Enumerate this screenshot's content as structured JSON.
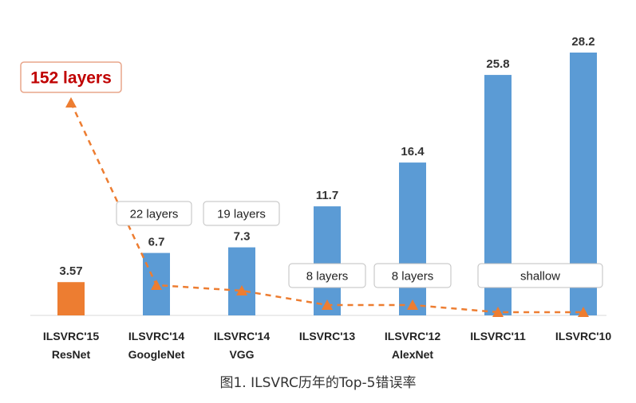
{
  "chart_data": {
    "type": "bar",
    "categories": [
      [
        "ILSVRC'15",
        "ResNet"
      ],
      [
        "ILSVRC'14",
        "GoogleNet"
      ],
      [
        "ILSVRC'14",
        "VGG"
      ],
      [
        "ILSVRC'13",
        ""
      ],
      [
        "ILSVRC'12",
        "AlexNet"
      ],
      [
        "ILSVRC'11",
        ""
      ],
      [
        "ILSVRC'10",
        ""
      ]
    ],
    "values": [
      3.57,
      6.7,
      7.3,
      11.7,
      16.4,
      25.8,
      28.2
    ],
    "value_labels": [
      "3.57",
      "6.7",
      "7.3",
      "11.7",
      "16.4",
      "25.8",
      "28.2"
    ],
    "bar_colors": [
      "#ED7D31",
      "#5B9BD5",
      "#5B9BD5",
      "#5B9BD5",
      "#5B9BD5",
      "#5B9BD5",
      "#5B9BD5"
    ],
    "ylim": [
      0,
      28.2
    ],
    "grid": false,
    "layer_series": {
      "points": [
        152,
        22,
        19,
        8,
        8,
        0,
        0
      ],
      "color": "#ED7D31",
      "style": "dashed-with-triangles"
    },
    "layer_annotations": [
      {
        "text": "152 layers",
        "target": 0,
        "highlight": true
      },
      {
        "text": "22 layers",
        "target": 1
      },
      {
        "text": "19 layers",
        "target": 2
      },
      {
        "text": "8 layers",
        "target": 3
      },
      {
        "text": "8 layers",
        "target": 4
      },
      {
        "text": "shallow",
        "target": [
          5,
          6
        ]
      }
    ],
    "highlight_color": "#C00000"
  },
  "caption": "图1. ILSVRC历年的Top-5错误率"
}
